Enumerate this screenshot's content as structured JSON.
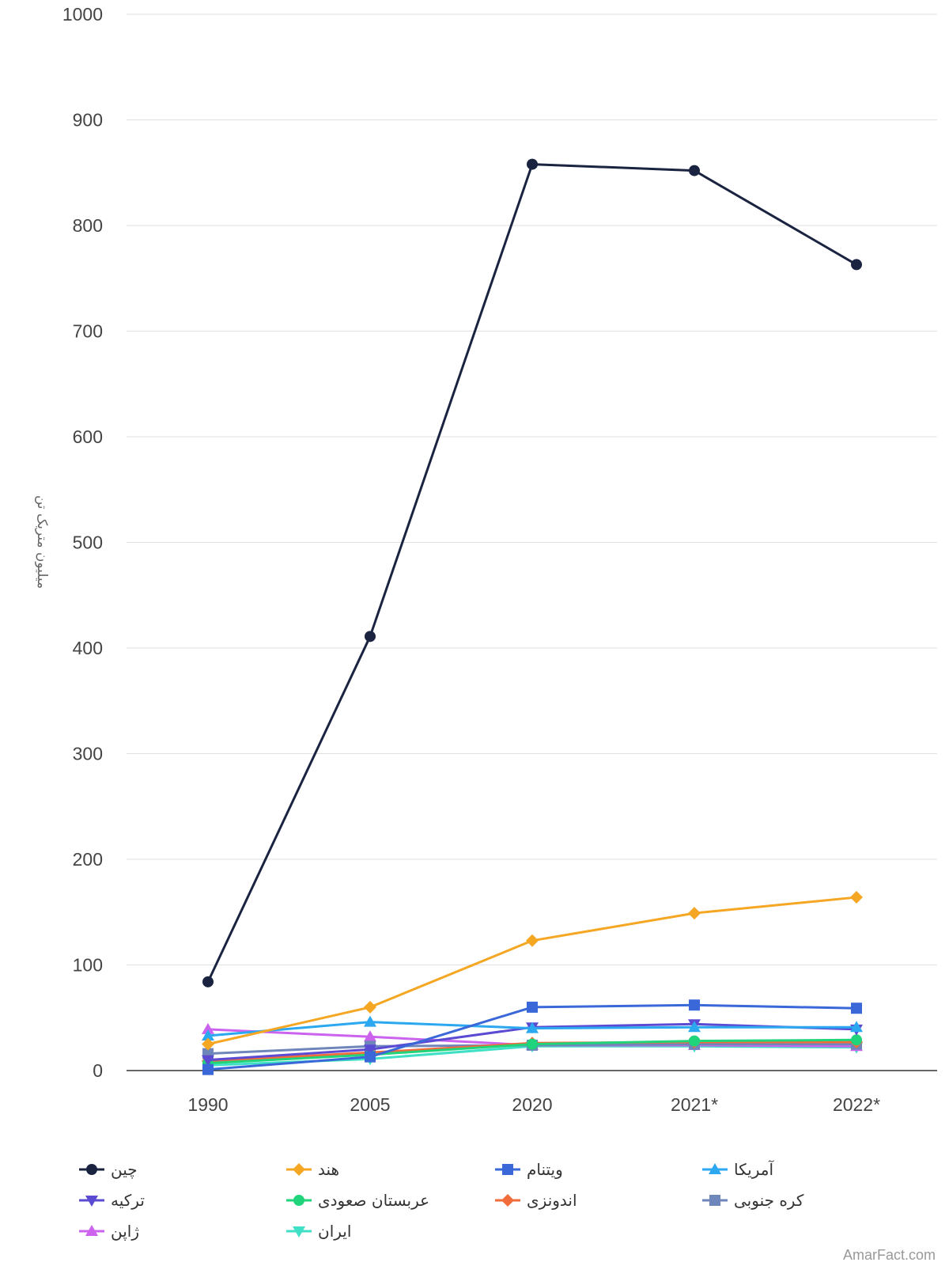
{
  "chart_data": {
    "type": "line",
    "categories": [
      "1990",
      "2005",
      "2020",
      "2021*",
      "2022*"
    ],
    "ylabel": "میلیون متریک تن",
    "ylim": [
      0,
      1000
    ],
    "yticks": [
      0,
      100,
      200,
      300,
      400,
      500,
      600,
      700,
      800,
      900,
      1000
    ],
    "grid": true,
    "legend_position": "bottom",
    "series": [
      {
        "name": "چین",
        "color": "#1a2340",
        "marker": "circle",
        "values": [
          84,
          411,
          858,
          852,
          763
        ]
      },
      {
        "name": "هند",
        "color": "#f5a623",
        "marker": "diamond",
        "values": [
          25,
          60,
          123,
          149,
          164
        ]
      },
      {
        "name": "ویتنام",
        "color": "#3a68d8",
        "marker": "square",
        "values": [
          1,
          13,
          60,
          62,
          59
        ]
      },
      {
        "name": "آمریکا",
        "color": "#2ba8f0",
        "marker": "triangle-up",
        "values": [
          33,
          46,
          40,
          41,
          41
        ]
      },
      {
        "name": "ترکیه",
        "color": "#5b4bd3",
        "marker": "triangle-down",
        "values": [
          10,
          20,
          41,
          44,
          39
        ]
      },
      {
        "name": "عربستان صعودی",
        "color": "#1fd47a",
        "marker": "circle",
        "values": [
          7,
          15,
          25,
          28,
          29
        ]
      },
      {
        "name": "اندونزی",
        "color": "#f26b3a",
        "marker": "diamond",
        "values": [
          9,
          17,
          26,
          27,
          27
        ]
      },
      {
        "name": "کره جنوبی",
        "color": "#6f86bb",
        "marker": "square",
        "values": [
          16,
          23,
          24,
          25,
          25
        ]
      },
      {
        "name": "ژاپن",
        "color": "#cb63ee",
        "marker": "triangle-up",
        "values": [
          39,
          32,
          24,
          24,
          23
        ]
      },
      {
        "name": "ایران",
        "color": "#3fe0c5",
        "marker": "triangle-down",
        "values": [
          5,
          11,
          23,
          23,
          22
        ]
      }
    ]
  },
  "credit": "AmarFact.com"
}
